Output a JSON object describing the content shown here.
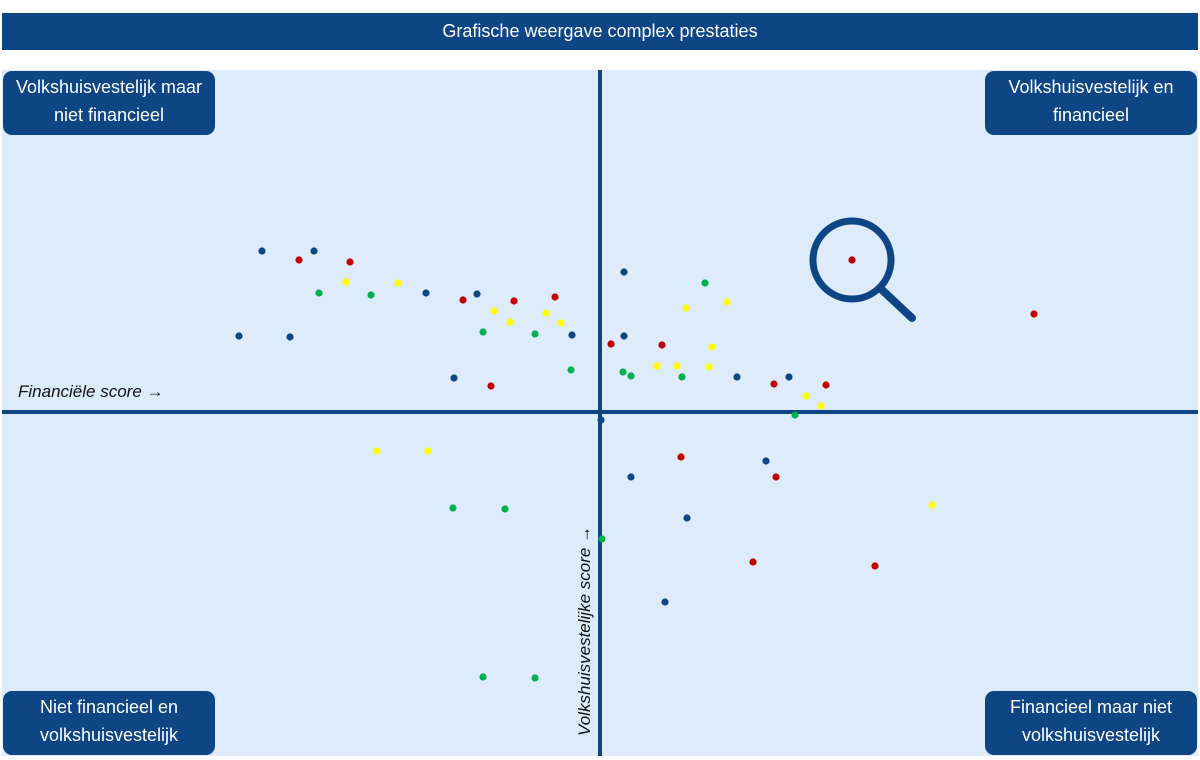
{
  "title": "Grafische weergave complex prestaties",
  "quadrants": {
    "top_left": "Volkshuisvestelijk maar niet financieel",
    "top_right": "Volkshuisvestelijk en financieel",
    "bottom_left": "Niet financieel en volkshuisvestelijk",
    "bottom_right": "Financieel maar niet volkshuisvestelijk"
  },
  "colors": {
    "accent": "#0d4585",
    "background": "#ddebfb",
    "blue": "#0d4585",
    "red": "#c00000",
    "green": "#00b050",
    "yellow": "#ffff00"
  },
  "chart_data": {
    "type": "scatter",
    "title": "Grafische weergave complex prestaties",
    "xlabel": "Financiële score →",
    "ylabel": "Volkshuisvestelijke score →",
    "xlim": [
      -600,
      600
    ],
    "ylim": [
      -345,
      345
    ],
    "grid": false,
    "highlight": {
      "icon": "magnifier-icon",
      "x": 252,
      "y": 152
    },
    "series": [
      {
        "color": "blue",
        "points": [
          [
            -338,
            161
          ],
          [
            -286,
            161
          ],
          [
            -361,
            76
          ],
          [
            -310,
            75
          ],
          [
            -174,
            119
          ],
          [
            -123,
            118
          ],
          [
            -28,
            77
          ],
          [
            -146,
            34
          ],
          [
            24,
            140
          ],
          [
            24,
            76
          ],
          [
            137,
            35
          ],
          [
            189,
            35
          ],
          [
            1,
            -8
          ],
          [
            31,
            -65
          ],
          [
            87,
            -106
          ],
          [
            166,
            -49
          ],
          [
            65,
            -190
          ]
        ]
      },
      {
        "color": "red",
        "points": [
          [
            -301,
            152
          ],
          [
            -250,
            150
          ],
          [
            -137,
            112
          ],
          [
            -86,
            111
          ],
          [
            -45,
            115
          ],
          [
            -109,
            26
          ],
          [
            11,
            68
          ],
          [
            62,
            67
          ],
          [
            174,
            28
          ],
          [
            226,
            27
          ],
          [
            252,
            152
          ],
          [
            434,
            98
          ],
          [
            81,
            -45
          ],
          [
            176,
            -65
          ],
          [
            153,
            -150
          ],
          [
            275,
            -154
          ]
        ]
      },
      {
        "color": "green",
        "points": [
          [
            -281,
            119
          ],
          [
            -229,
            117
          ],
          [
            -117,
            80
          ],
          [
            -65,
            78
          ],
          [
            -29,
            42
          ],
          [
            23,
            40
          ],
          [
            31,
            36
          ],
          [
            82,
            35
          ],
          [
            105,
            129
          ],
          [
            195,
            -3
          ],
          [
            -147,
            -96
          ],
          [
            -95,
            -97
          ],
          [
            2,
            -127
          ],
          [
            -117,
            -265
          ],
          [
            -65,
            -266
          ]
        ]
      },
      {
        "color": "yellow",
        "points": [
          [
            -254,
            130
          ],
          [
            -202,
            129
          ],
          [
            -106,
            101
          ],
          [
            -90,
            90
          ],
          [
            -54,
            99
          ],
          [
            -39,
            89
          ],
          [
            86,
            104
          ],
          [
            127,
            110
          ],
          [
            112,
            65
          ],
          [
            57,
            46
          ],
          [
            77,
            46
          ],
          [
            109,
            45
          ],
          [
            206,
            16
          ],
          [
            221,
            6
          ],
          [
            -223,
            -39
          ],
          [
            -172,
            -39
          ],
          [
            332,
            -93
          ]
        ]
      }
    ]
  }
}
